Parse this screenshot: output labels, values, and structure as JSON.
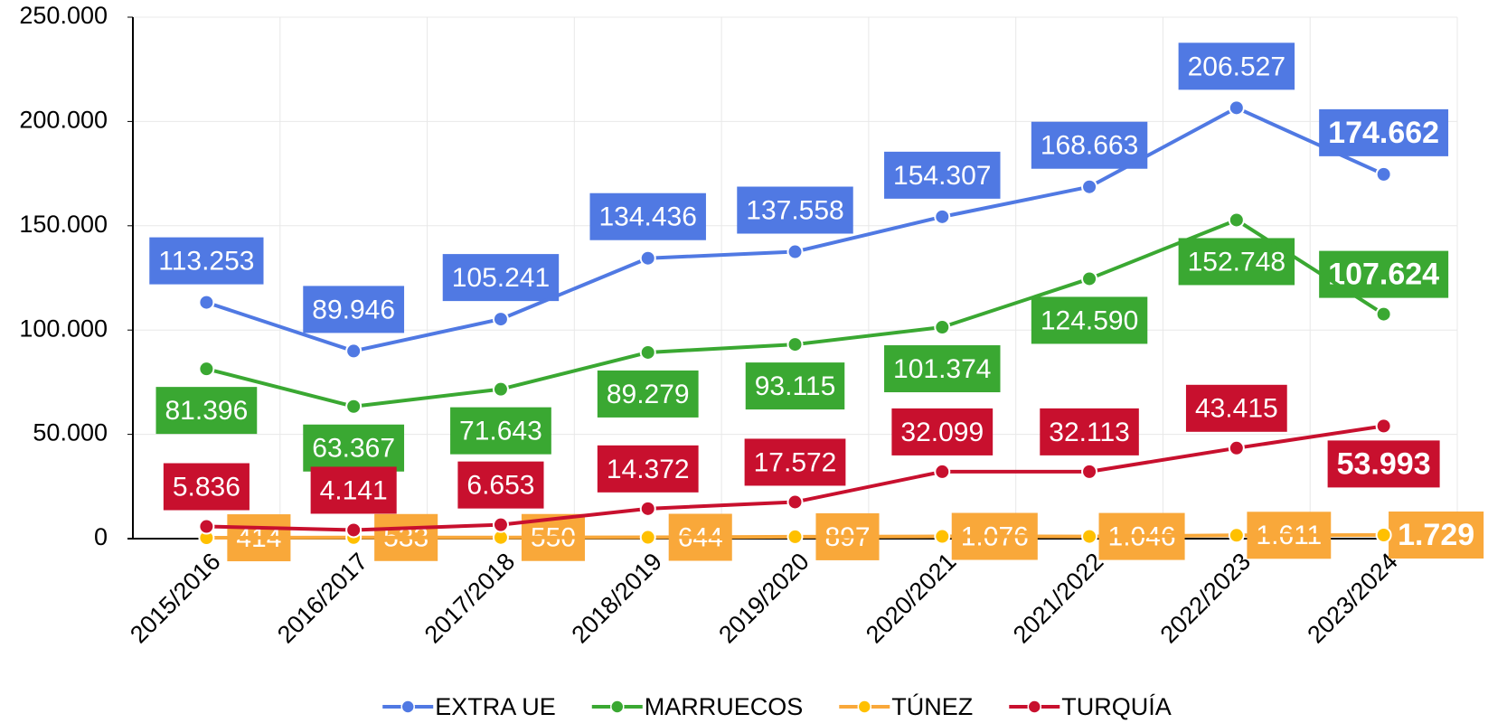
{
  "chart_data": {
    "type": "line",
    "categories": [
      "2015/2016",
      "2016/2017",
      "2017/2018",
      "2018/2019",
      "2019/2020",
      "2020/2021",
      "2021/2022",
      "2022/2023",
      "2023/2024"
    ],
    "series": [
      {
        "name": "EXTRA UE",
        "color": "#5079e3",
        "values": [
          113253,
          89946,
          105241,
          134436,
          137558,
          154307,
          168663,
          206527,
          174662
        ],
        "value_labels": [
          "113.253",
          "89.946",
          "105.241",
          "134.436",
          "137.558",
          "154.307",
          "168.663",
          "206.527",
          "174.662"
        ]
      },
      {
        "name": "MARRUECOS",
        "color": "#3aa832",
        "values": [
          81396,
          63367,
          71643,
          89279,
          93115,
          101374,
          124590,
          152748,
          107624
        ],
        "value_labels": [
          "81.396",
          "63.367",
          "71.643",
          "89.279",
          "93.115",
          "101.374",
          "124.590",
          "152.748",
          "107.624"
        ]
      },
      {
        "name": "TÚNEZ",
        "color": "#f9a83a",
        "values": [
          414,
          533,
          550,
          644,
          897,
          1076,
          1046,
          1611,
          1729
        ],
        "value_labels": [
          "414",
          "533",
          "550",
          "644",
          "897",
          "1.076",
          "1.046",
          "1.611",
          "1.729"
        ]
      },
      {
        "name": "TURQUÍA",
        "color": "#c8102e",
        "values": [
          5836,
          4141,
          6653,
          14372,
          17572,
          32099,
          32113,
          43415,
          53993
        ],
        "value_labels": [
          "5.836",
          "4.141",
          "6.653",
          "14.372",
          "17.572",
          "32.099",
          "32.113",
          "43.415",
          "53.993"
        ]
      }
    ],
    "ylim": [
      0,
      250000
    ],
    "yticks": [
      0,
      {
        "value": 50000,
        "label": "50.000"
      },
      {
        "value": 100000,
        "label": "100.000"
      },
      {
        "value": 150000,
        "label": "150.000"
      },
      {
        "value": 200000,
        "label": "200.000"
      },
      {
        "value": 250000,
        "label": "250.000"
      }
    ],
    "grid": true,
    "legend": "bottom"
  }
}
